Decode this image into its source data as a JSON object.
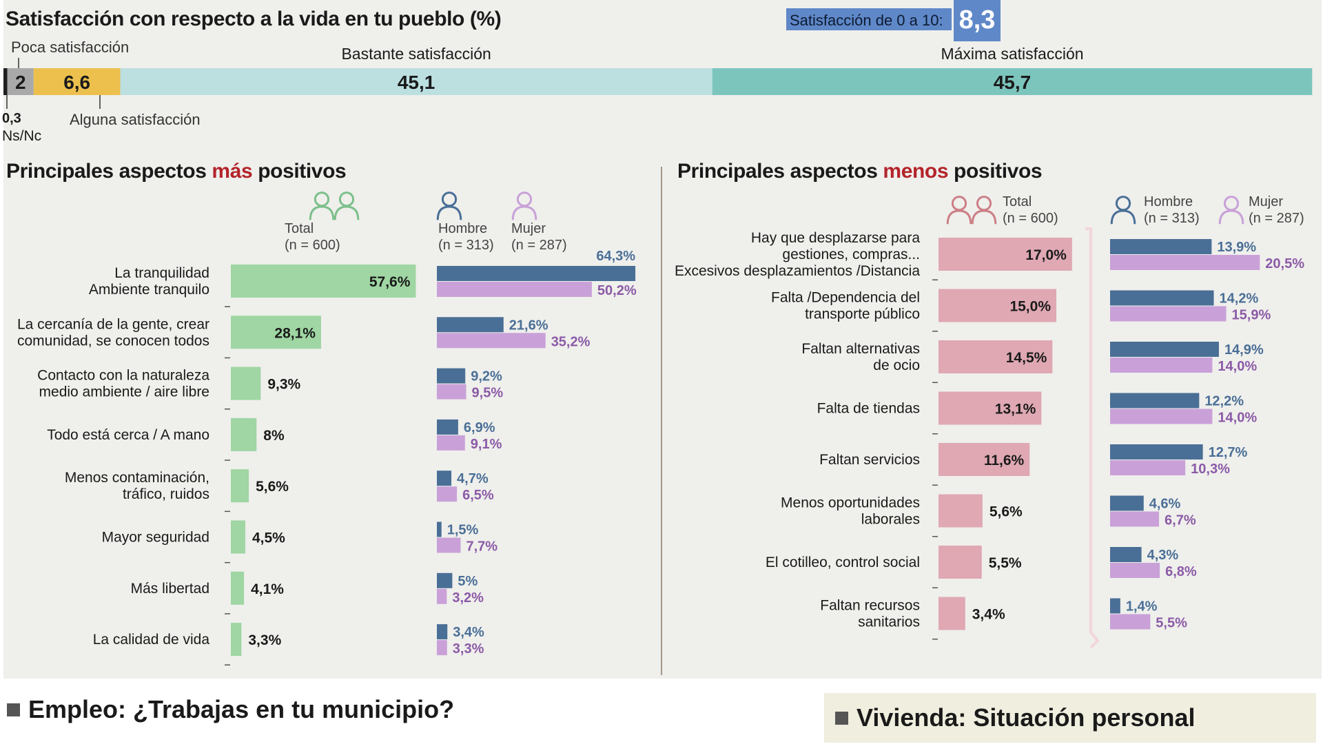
{
  "title": "Satisfacción con respecto a la vida en tu pueblo (%)",
  "score_badge": {
    "label": "Satisfacción de 0 a 10:",
    "value": "8,3"
  },
  "chart_data": [
    {
      "type": "bar",
      "subtype": "stacked-100",
      "title": "Satisfacción con respecto a la vida en tu pueblo (%)",
      "segments": [
        {
          "name": "Ns/Nc",
          "value": 0.3,
          "label": "0,3",
          "color": "#1f1f1f"
        },
        {
          "name": "Poca satisfacción",
          "value": 2,
          "label": "2",
          "color": "#a9a9a9"
        },
        {
          "name": "Alguna satisfacción",
          "value": 6.6,
          "label": "6,6",
          "color": "#edc04e"
        },
        {
          "name": "Bastante satisfacción",
          "value": 45.1,
          "label": "45,1",
          "color": "#bcdfe0"
        },
        {
          "name": "Máxima satisfacción",
          "value": 45.7,
          "label": "45,7",
          "color": "#7cc5bd"
        }
      ]
    },
    {
      "type": "bar",
      "subtype": "horizontal",
      "title": "Principales aspectos más positivos",
      "title_parts": [
        "Principales aspectos ",
        "más",
        " positivos"
      ],
      "legend": {
        "total": {
          "name": "Total",
          "n": "(n = 600)"
        },
        "hombre": {
          "name": "Hombre",
          "n": "(n = 313)"
        },
        "mujer": {
          "name": "Mujer",
          "n": "(n = 287)"
        }
      },
      "categories": [
        [
          "La tranquilidad",
          "Ambiente tranquilo"
        ],
        [
          "La cercanía de la gente, crear",
          "comunidad, se conocen todos"
        ],
        [
          "Contacto con la naturaleza",
          "medio ambiente / aire libre"
        ],
        [
          "Todo está cerca / A mano"
        ],
        [
          "Menos contaminación,",
          "tráfico, ruidos"
        ],
        [
          "Mayor seguridad"
        ],
        [
          "Más libertad"
        ],
        [
          "La calidad de vida"
        ]
      ],
      "series": [
        {
          "name": "Total",
          "color": "#9fd6a3",
          "values": [
            57.6,
            28.1,
            9.3,
            8,
            5.6,
            4.5,
            4.1,
            3.3
          ],
          "labels": [
            "57,6%",
            "28,1%",
            "9,3%",
            "8%",
            "5,6%",
            "4,5%",
            "4,1%",
            "3,3%"
          ]
        },
        {
          "name": "Hombre",
          "color": "#4a6f96",
          "values": [
            64.3,
            21.6,
            9.2,
            6.9,
            4.7,
            1.5,
            5,
            3.4
          ],
          "labels": [
            "64,3%",
            "21,6%",
            "9,2%",
            "6,9%",
            "4,7%",
            "1,5%",
            "5%",
            "3,4%"
          ]
        },
        {
          "name": "Mujer",
          "color": "#c9a1d8",
          "values": [
            50.2,
            35.2,
            9.5,
            9.1,
            6.5,
            7.7,
            3.2,
            3.3
          ],
          "labels": [
            "50,2%",
            "35,2%",
            "9,5%",
            "9,1%",
            "6,5%",
            "7,7%",
            "3,2%",
            "3,3%"
          ]
        }
      ]
    },
    {
      "type": "bar",
      "subtype": "horizontal",
      "title": "Principales aspectos menos positivos",
      "title_parts": [
        "Principales aspectos ",
        "menos",
        " positivos"
      ],
      "legend": {
        "total": {
          "name": "Total",
          "n": "(n = 600)"
        },
        "hombre": {
          "name": "Hombre",
          "n": "(n = 313)"
        },
        "mujer": {
          "name": "Mujer",
          "n": "(n = 287)"
        }
      },
      "categories": [
        [
          "Hay que desplazarse para",
          "gestiones, compras...",
          "Excesivos desplazamientos /Distancia"
        ],
        [
          "Falta /Dependencia del",
          "transporte público"
        ],
        [
          "Faltan alternativas",
          "de ocio"
        ],
        [
          "Falta de tiendas"
        ],
        [
          "Faltan servicios"
        ],
        [
          "Menos oportunidades",
          "laborales"
        ],
        [
          "El cotilleo, control social"
        ],
        [
          "Faltan recursos",
          "sanitarios"
        ]
      ],
      "series": [
        {
          "name": "Total",
          "color": "#dfa8b3",
          "values": [
            17.0,
            15.0,
            14.5,
            13.1,
            11.6,
            5.6,
            5.5,
            3.4
          ],
          "labels": [
            "17,0%",
            "15,0%",
            "14,5%",
            "13,1%",
            "11,6%",
            "5,6%",
            "5,5%",
            "3,4%"
          ]
        },
        {
          "name": "Hombre",
          "color": "#4a6f96",
          "values": [
            13.9,
            14.2,
            14.9,
            12.2,
            12.7,
            4.6,
            4.3,
            1.4
          ],
          "labels": [
            "13,9%",
            "14,2%",
            "14,9%",
            "12,2%",
            "12,7%",
            "4,6%",
            "4,3%",
            "1,4%"
          ]
        },
        {
          "name": "Mujer",
          "color": "#c9a1d8",
          "values": [
            20.5,
            15.9,
            14.0,
            14.0,
            10.3,
            6.7,
            6.8,
            5.5
          ],
          "labels": [
            "20,5%",
            "15,9%",
            "14,0%",
            "14,0%",
            "10,3%",
            "6,7%",
            "6,8%",
            "5,5%"
          ]
        }
      ]
    }
  ],
  "footer": {
    "left": "Empleo: ¿Trabajas en tu municipio?",
    "right": "Vivienda: Situación personal"
  },
  "colors": {
    "panel_bg": "#efefec",
    "accent_red": "#b3242a",
    "badge_bg": "#5f88c8",
    "hombre_text": "#4a6f96",
    "mujer_text": "#8b5aa6",
    "icon_green": "#7cc08a",
    "icon_red": "#cc7f86",
    "icon_blue": "#4a6f96",
    "icon_purple": "#c9a1d8"
  }
}
